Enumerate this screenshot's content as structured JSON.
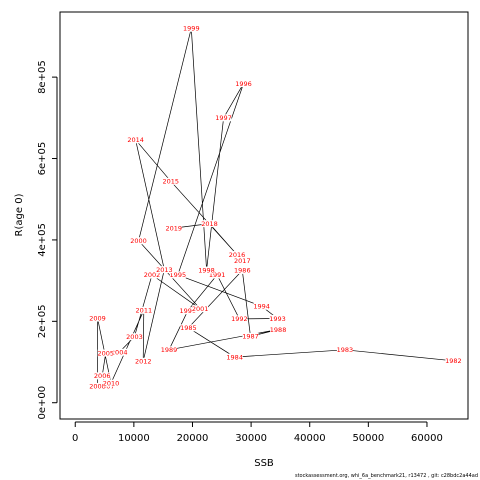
{
  "footer": "stockassessment.org, whi_6a_benchmark21, r13472 , git: c28bdc2a44ad",
  "chart_data": {
    "type": "scatter",
    "title": "",
    "xlabel": "SSB",
    "ylabel": "R(age 0)",
    "xlim": [
      -2600,
      67000
    ],
    "ylim": [
      -40000,
      960000
    ],
    "x_ticks": [
      0,
      10000,
      20000,
      30000,
      40000,
      50000,
      60000
    ],
    "x_tick_labels": [
      "0",
      "10000",
      "20000",
      "30000",
      "40000",
      "50000",
      "60000"
    ],
    "y_ticks": [
      0,
      200000,
      400000,
      600000,
      800000
    ],
    "y_tick_labels": [
      "0e+00",
      "2e+05",
      "4e+05",
      "6e+05",
      "8e+05"
    ],
    "grid": false,
    "point_label_color": "#ff0000",
    "line_color": "#000000",
    "points": [
      {
        "year": "1982",
        "ssb": 64500,
        "r": 103000
      },
      {
        "year": "1983",
        "ssb": 46000,
        "r": 130000
      },
      {
        "year": "1984",
        "ssb": 27200,
        "r": 112000
      },
      {
        "year": "1985",
        "ssb": 19300,
        "r": 184000
      },
      {
        "year": "1986",
        "ssb": 28500,
        "r": 325000
      },
      {
        "year": "1987",
        "ssb": 29900,
        "r": 163000
      },
      {
        "year": "1988",
        "ssb": 34600,
        "r": 180000
      },
      {
        "year": "1989",
        "ssb": 16000,
        "r": 130000
      },
      {
        "year": "1990",
        "ssb": 19200,
        "r": 226000
      },
      {
        "year": "1991",
        "ssb": 24200,
        "r": 314000
      },
      {
        "year": "1992",
        "ssb": 28000,
        "r": 206000
      },
      {
        "year": "1993",
        "ssb": 34500,
        "r": 207000
      },
      {
        "year": "1994",
        "ssb": 31800,
        "r": 237000
      },
      {
        "year": "1995",
        "ssb": 17500,
        "r": 314000
      },
      {
        "year": "1996",
        "ssb": 28700,
        "r": 784000
      },
      {
        "year": "1997",
        "ssb": 25300,
        "r": 700000
      },
      {
        "year": "1998",
        "ssb": 22400,
        "r": 326000
      },
      {
        "year": "1999",
        "ssb": 19800,
        "r": 920000
      },
      {
        "year": "2000",
        "ssb": 10800,
        "r": 398000
      },
      {
        "year": "2001",
        "ssb": 21300,
        "r": 231000
      },
      {
        "year": "2002",
        "ssb": 13100,
        "r": 314000
      },
      {
        "year": "2003",
        "ssb": 10100,
        "r": 162000
      },
      {
        "year": "2004",
        "ssb": 7500,
        "r": 124000
      },
      {
        "year": "2005",
        "ssb": 5200,
        "r": 122000
      },
      {
        "year": "2006",
        "ssb": 4600,
        "r": 66000
      },
      {
        "year": "2007",
        "ssb": 5300,
        "r": 40000
      },
      {
        "year": "2008",
        "ssb": 3800,
        "r": 40000
      },
      {
        "year": "2009",
        "ssb": 3800,
        "r": 208000
      },
      {
        "year": "2010",
        "ssb": 6100,
        "r": 48000
      },
      {
        "year": "2011",
        "ssb": 11700,
        "r": 227000
      },
      {
        "year": "2012",
        "ssb": 11600,
        "r": 102000
      },
      {
        "year": "2013",
        "ssb": 15200,
        "r": 327000
      },
      {
        "year": "2014",
        "ssb": 10300,
        "r": 646000
      },
      {
        "year": "2015",
        "ssb": 16300,
        "r": 544000
      },
      {
        "year": "2016",
        "ssb": 27600,
        "r": 364000
      },
      {
        "year": "2017",
        "ssb": 28500,
        "r": 349000
      },
      {
        "year": "2018",
        "ssb": 22900,
        "r": 440000
      },
      {
        "year": "2019",
        "ssb": 16800,
        "r": 429000
      }
    ]
  }
}
